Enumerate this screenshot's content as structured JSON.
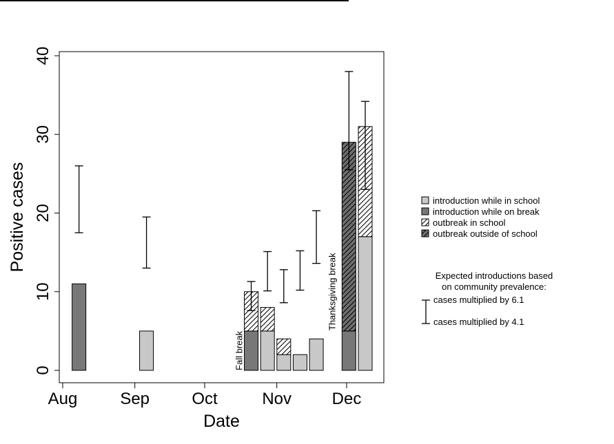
{
  "chart_data": {
    "type": "bar",
    "stacked": true,
    "xlabel": "Date",
    "ylabel": "Positive cases",
    "ylim": [
      0,
      40
    ],
    "yticks": [
      0,
      10,
      20,
      30,
      40
    ],
    "xlim": [
      "2020-07-26",
      "2020-12-16"
    ],
    "xticks": [
      {
        "date": "2020-08-01",
        "label": "Aug"
      },
      {
        "date": "2020-09-01",
        "label": "Sep"
      },
      {
        "date": "2020-10-01",
        "label": "Oct"
      },
      {
        "date": "2020-11-01",
        "label": "Nov"
      },
      {
        "date": "2020-12-01",
        "label": "Dec"
      }
    ],
    "series": [
      {
        "name": "introduction while in school",
        "key": "intro_school",
        "fill": "#c8c8c8",
        "pattern": "none"
      },
      {
        "name": "introduction while on break",
        "key": "intro_break",
        "fill": "#787878",
        "pattern": "none"
      },
      {
        "name": "outbreak in school",
        "key": "outbreak_school",
        "fill": "#ffffff",
        "pattern": "hatch"
      },
      {
        "name": "outbreak outside of school",
        "key": "outbreak_outside",
        "fill": "#6e6e6e",
        "pattern": "hatch"
      }
    ],
    "bars": [
      {
        "date": "2020-08-08",
        "segments": [
          {
            "series": "intro_break",
            "value": 11
          }
        ]
      },
      {
        "date": "2020-09-06",
        "segments": [
          {
            "series": "intro_school",
            "value": 5
          }
        ]
      },
      {
        "date": "2020-10-21",
        "segments": [
          {
            "series": "intro_break",
            "value": 5
          },
          {
            "series": "outbreak_school",
            "value": 5
          }
        ]
      },
      {
        "date": "2020-10-28",
        "segments": [
          {
            "series": "intro_school",
            "value": 5
          },
          {
            "series": "outbreak_school",
            "value": 3
          }
        ]
      },
      {
        "date": "2020-11-04",
        "segments": [
          {
            "series": "intro_school",
            "value": 2
          },
          {
            "series": "outbreak_school",
            "value": 2
          }
        ]
      },
      {
        "date": "2020-11-11",
        "segments": [
          {
            "series": "intro_school",
            "value": 2
          }
        ]
      },
      {
        "date": "2020-11-18",
        "segments": [
          {
            "series": "intro_school",
            "value": 4
          }
        ]
      },
      {
        "date": "2020-12-02",
        "segments": [
          {
            "series": "intro_break",
            "value": 5
          },
          {
            "series": "outbreak_outside",
            "value": 24
          }
        ]
      },
      {
        "date": "2020-12-09",
        "segments": [
          {
            "series": "intro_school",
            "value": 17
          },
          {
            "series": "outbreak_school",
            "value": 14
          }
        ]
      }
    ],
    "expected_ranges": [
      {
        "date": "2020-08-08",
        "low": 17.5,
        "high": 26.0
      },
      {
        "date": "2020-09-06",
        "low": 13.0,
        "high": 19.5
      },
      {
        "date": "2020-10-21",
        "low": 7.6,
        "high": 11.3
      },
      {
        "date": "2020-10-28",
        "low": 10.1,
        "high": 15.1
      },
      {
        "date": "2020-11-04",
        "low": 8.6,
        "high": 12.8
      },
      {
        "date": "2020-11-11",
        "low": 10.2,
        "high": 15.2
      },
      {
        "date": "2020-11-18",
        "low": 13.6,
        "high": 20.3
      },
      {
        "date": "2020-12-02",
        "low": 25.5,
        "high": 38.0
      },
      {
        "date": "2020-12-09",
        "low": 23.0,
        "high": 34.2
      }
    ],
    "annotations": [
      {
        "text": "Fall break",
        "date": "2020-10-16",
        "y": 2.5
      },
      {
        "text": "Thanksgiving break",
        "date": "2020-11-25",
        "y": 10
      }
    ],
    "errorbar_legend": {
      "title_line1": "Expected introductions based",
      "title_line2": "on community prevalence:",
      "upper_label": "cases multiplied by 6.1",
      "lower_label": "cases multiplied by 4.1"
    },
    "legend_position": "right, outside plot",
    "grid": false
  }
}
